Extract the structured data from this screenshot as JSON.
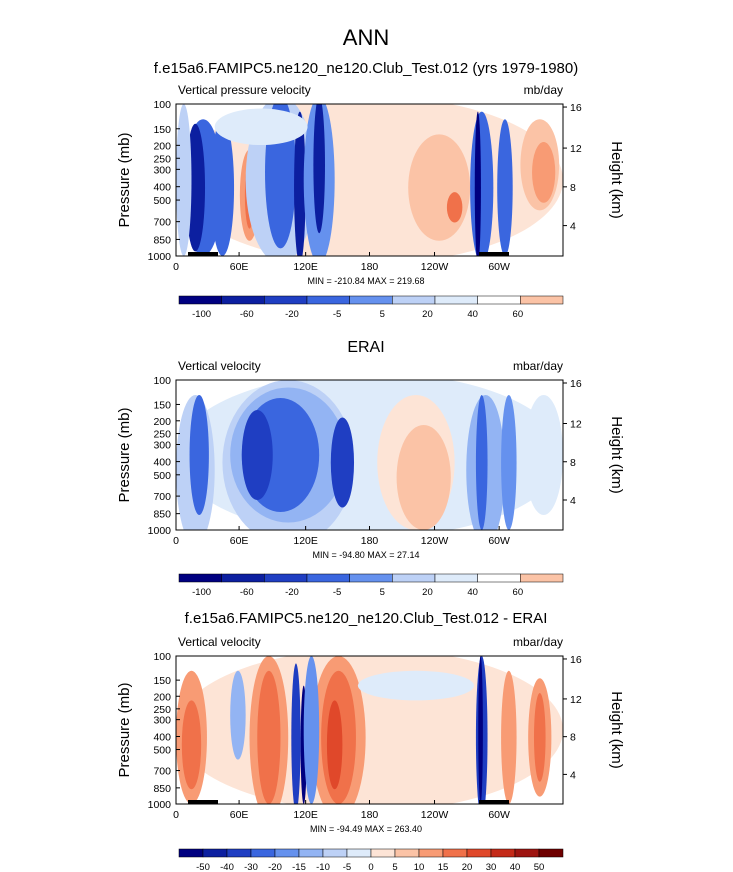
{
  "page_title": "ANN",
  "colors": {
    "neg": [
      "#000080",
      "#0c1fa0",
      "#1f3ec2",
      "#3a66df",
      "#6591ee",
      "#93b4f3",
      "#bdd1f6",
      "#deebfa"
    ],
    "pos": [
      "#fde4d6",
      "#fbc3a6",
      "#f89b74",
      "#f0714a",
      "#e0482a",
      "#c42a18",
      "#9e1410",
      "#6f0000"
    ]
  },
  "chart_data": [
    {
      "type": "contour",
      "title": "f.e15a6.FAMIPC5.ne120_ne120.Club_Test.012 (yrs 1979-1980)",
      "left_label": "Vertical pressure velocity",
      "right_label": "mb/day",
      "ylabel": "Pressure (mb)",
      "y2label": "Height (km)",
      "x_ticks": [
        "0",
        "60E",
        "120E",
        "180",
        "120W",
        "60W"
      ],
      "y_ticks": [
        "100",
        "150",
        "200",
        "250",
        "300",
        "400",
        "500",
        "700",
        "850",
        "1000"
      ],
      "y2_ticks": [
        "16",
        "12",
        "8",
        "4"
      ],
      "minmax": "MIN = -210.84  MAX = 219.68",
      "colorbar_labels": [
        "-100",
        "-60",
        "-20",
        "-5",
        "5",
        "20",
        "40",
        "60"
      ]
    },
    {
      "type": "contour",
      "title": "ERAI",
      "left_label": "Vertical velocity",
      "right_label": "mbar/day",
      "ylabel": "Pressure (mb)",
      "y2label": "Height (km)",
      "x_ticks": [
        "0",
        "60E",
        "120E",
        "180",
        "120W",
        "60W"
      ],
      "y_ticks": [
        "100",
        "150",
        "200",
        "250",
        "300",
        "400",
        "500",
        "700",
        "850",
        "1000"
      ],
      "y2_ticks": [
        "16",
        "12",
        "8",
        "4"
      ],
      "minmax": "MIN = -94.80  MAX = 27.14",
      "colorbar_labels": [
        "-100",
        "-60",
        "-20",
        "-5",
        "5",
        "20",
        "40",
        "60"
      ]
    },
    {
      "type": "contour",
      "title": "f.e15a6.FAMIPC5.ne120_ne120.Club_Test.012 - ERAI",
      "left_label": "Vertical velocity",
      "right_label": "mbar/day",
      "ylabel": "Pressure (mb)",
      "y2label": "Height (km)",
      "x_ticks": [
        "0",
        "60E",
        "120E",
        "180",
        "120W",
        "60W"
      ],
      "y_ticks": [
        "100",
        "150",
        "200",
        "250",
        "300",
        "400",
        "500",
        "700",
        "850",
        "1000"
      ],
      "y2_ticks": [
        "16",
        "12",
        "8",
        "4"
      ],
      "minmax": "MIN = -94.49  MAX = 263.40",
      "colorbar_labels": [
        "-50",
        "-40",
        "-30",
        "-20",
        "-15",
        "-10",
        "-5",
        "0",
        "5",
        "10",
        "15",
        "20",
        "30",
        "40",
        "50"
      ]
    }
  ]
}
